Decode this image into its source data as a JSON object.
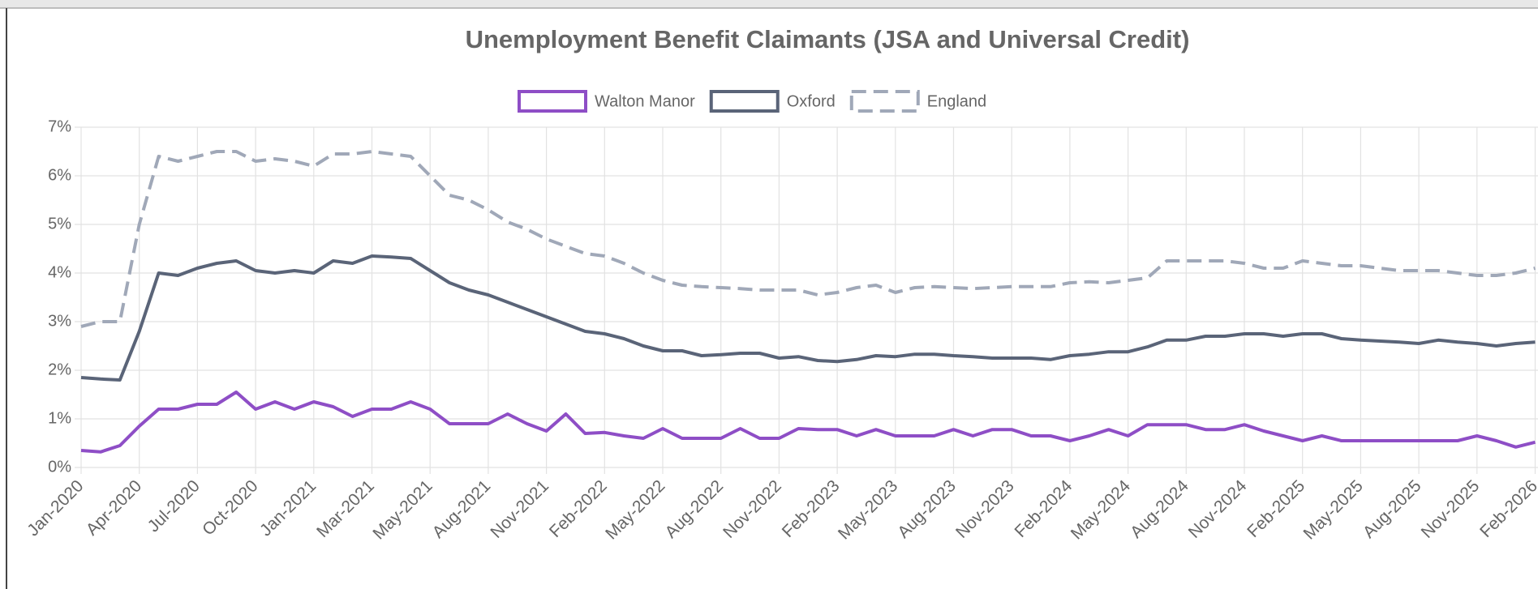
{
  "chart_data": {
    "type": "line",
    "title": "Unemployment Benefit Claimants (JSA and Universal Credit)",
    "categories": [
      "Jan-2020",
      null,
      null,
      "Apr-2020",
      null,
      null,
      "Jul-2020",
      null,
      null,
      "Oct-2020",
      null,
      null,
      "Jan-2021",
      null,
      null,
      "Mar-2021",
      null,
      null,
      "May-2021",
      null,
      null,
      "Aug-2021",
      null,
      null,
      "Nov-2021",
      null,
      null,
      "Feb-2022",
      null,
      null,
      "May-2022",
      null,
      null,
      "Aug-2022",
      null,
      null,
      "Nov-2022",
      null,
      null,
      "Feb-2023",
      null,
      null,
      "May-2023",
      null,
      null,
      "Aug-2023",
      null,
      null,
      "Nov-2023",
      null,
      null,
      "Feb-2024",
      null,
      null,
      "May-2024",
      null,
      null,
      "Aug-2024",
      null,
      null,
      "Nov-2024",
      null,
      null,
      "Feb-2025",
      null,
      null,
      "May-2025",
      null,
      null,
      "Aug-2025",
      null,
      null,
      "Nov-2025",
      null,
      null,
      "Feb-2026"
    ],
    "series": [
      {
        "name": "Walton Manor",
        "color": "#8e4ec6",
        "dashed": false,
        "values": [
          0.35,
          0.32,
          0.45,
          0.85,
          1.2,
          1.2,
          1.3,
          1.3,
          1.55,
          1.2,
          1.35,
          1.2,
          1.35,
          1.25,
          1.05,
          1.2,
          1.2,
          1.35,
          1.2,
          0.9,
          0.9,
          0.9,
          1.1,
          0.9,
          0.75,
          1.1,
          0.7,
          0.72,
          0.65,
          0.6,
          0.8,
          0.6,
          0.6,
          0.6,
          0.8,
          0.6,
          0.6,
          0.8,
          0.78,
          0.78,
          0.65,
          0.78,
          0.65,
          0.65,
          0.65,
          0.78,
          0.65,
          0.78,
          0.78,
          0.65,
          0.65,
          0.55,
          0.65,
          0.78,
          0.65,
          0.88,
          0.88,
          0.88,
          0.78,
          0.78,
          0.88,
          0.75,
          0.65,
          0.55,
          0.65,
          0.55,
          0.55,
          0.55,
          0.55,
          0.55,
          0.55,
          0.55,
          0.65,
          0.55,
          0.42,
          0.52
        ]
      },
      {
        "name": "Oxford",
        "color": "#5a6478",
        "dashed": false,
        "values": [
          1.85,
          1.82,
          1.8,
          2.8,
          4.0,
          3.95,
          4.1,
          4.2,
          4.25,
          4.05,
          4.0,
          4.05,
          4.0,
          4.25,
          4.2,
          4.35,
          4.33,
          4.3,
          4.05,
          3.8,
          3.65,
          3.55,
          3.4,
          3.25,
          3.1,
          2.95,
          2.8,
          2.75,
          2.65,
          2.5,
          2.4,
          2.4,
          2.3,
          2.32,
          2.35,
          2.35,
          2.25,
          2.28,
          2.2,
          2.18,
          2.22,
          2.3,
          2.28,
          2.33,
          2.33,
          2.3,
          2.28,
          2.25,
          2.25,
          2.25,
          2.22,
          2.3,
          2.33,
          2.38,
          2.38,
          2.48,
          2.62,
          2.62,
          2.7,
          2.7,
          2.75,
          2.75,
          2.7,
          2.75,
          2.75,
          2.65,
          2.62,
          2.6,
          2.58,
          2.55,
          2.62,
          2.58,
          2.55,
          2.5,
          2.55,
          2.58
        ]
      },
      {
        "name": "England",
        "color": "#a0a8b8",
        "dashed": true,
        "values": [
          2.9,
          3.0,
          3.0,
          5.0,
          6.4,
          6.3,
          6.4,
          6.5,
          6.5,
          6.3,
          6.35,
          6.3,
          6.2,
          6.45,
          6.45,
          6.5,
          6.45,
          6.4,
          6.0,
          5.6,
          5.5,
          5.3,
          5.05,
          4.9,
          4.7,
          4.55,
          4.4,
          4.35,
          4.2,
          4.0,
          3.85,
          3.75,
          3.72,
          3.7,
          3.68,
          3.65,
          3.65,
          3.65,
          3.55,
          3.6,
          3.7,
          3.75,
          3.6,
          3.7,
          3.72,
          3.7,
          3.68,
          3.7,
          3.72,
          3.72,
          3.72,
          3.8,
          3.82,
          3.8,
          3.85,
          3.9,
          4.25,
          4.25,
          4.25,
          4.25,
          4.2,
          4.1,
          4.1,
          4.25,
          4.2,
          4.15,
          4.15,
          4.1,
          4.05,
          4.05,
          4.05,
          4.0,
          3.95,
          3.95,
          4.0,
          4.1
        ]
      }
    ],
    "ylim": [
      0,
      7
    ],
    "yticks": [
      {
        "value": 0,
        "label": "0%"
      },
      {
        "value": 1,
        "label": "1%"
      },
      {
        "value": 2,
        "label": "2%"
      },
      {
        "value": 3,
        "label": "3%"
      },
      {
        "value": 4,
        "label": "4%"
      },
      {
        "value": 5,
        "label": "5%"
      },
      {
        "value": 6,
        "label": "6%"
      },
      {
        "value": 7,
        "label": "7%"
      }
    ],
    "grid": true,
    "legend": "top"
  }
}
